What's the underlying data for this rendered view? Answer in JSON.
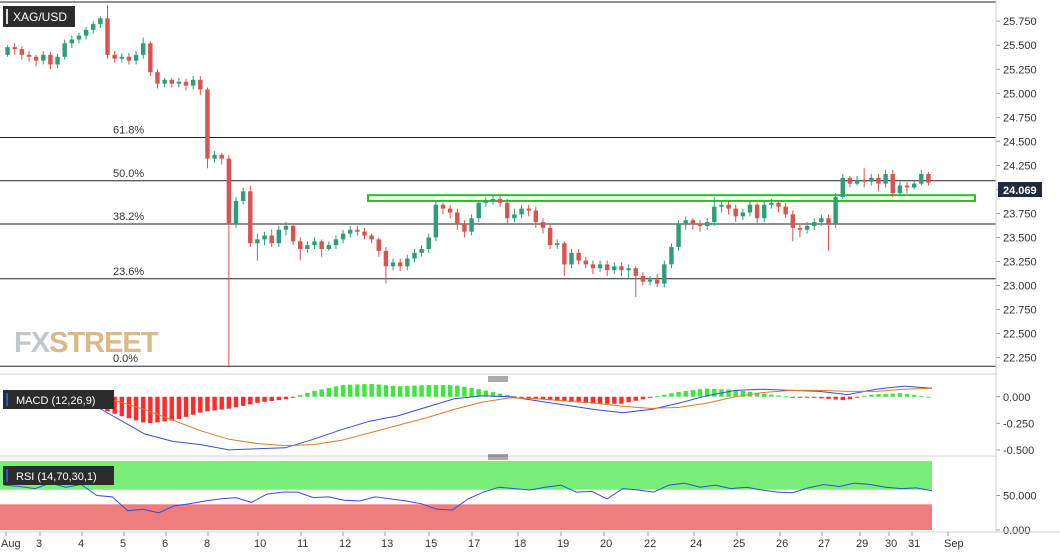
{
  "chart_data": [
    {
      "type": "candlestick",
      "title": "XAG/USD",
      "y_axis_ticks": [
        "25.750",
        "25.500",
        "25.250",
        "25.000",
        "24.750",
        "24.500",
        "24.250",
        "24.000",
        "23.750",
        "23.500",
        "23.250",
        "23.000",
        "22.750",
        "22.500",
        "22.250"
      ],
      "ylim": [
        22.1,
        25.95
      ],
      "x_axis_ticks": [
        "Aug",
        "3",
        "4",
        "5",
        "6",
        "8",
        "10",
        "11",
        "12",
        "13",
        "15",
        "17",
        "18",
        "19",
        "20",
        "22",
        "24",
        "25",
        "26",
        "27",
        "29",
        "30",
        "31",
        "Sep"
      ],
      "last_price": "24.069",
      "fibonacci_levels": [
        {
          "label": "61.8%",
          "value": 24.54
        },
        {
          "label": "50.0%",
          "value": 24.09
        },
        {
          "label": "38.2%",
          "value": 23.64
        },
        {
          "label": "23.6%",
          "value": 23.07
        },
        {
          "label": "0.0%",
          "value": 22.16
        }
      ],
      "resistance_zone": {
        "from": 23.88,
        "to": 23.94
      },
      "candles": [
        [
          25.4,
          25.48,
          25.38,
          25.5
        ],
        [
          25.48,
          25.46,
          25.4,
          25.52
        ],
        [
          25.46,
          25.4,
          25.35,
          25.49
        ],
        [
          25.4,
          25.38,
          25.33,
          25.44
        ],
        [
          25.38,
          25.34,
          25.28,
          25.4
        ],
        [
          25.34,
          25.4,
          25.3,
          25.44
        ],
        [
          25.4,
          25.3,
          25.25,
          25.43
        ],
        [
          25.3,
          25.38,
          25.26,
          25.41
        ],
        [
          25.38,
          25.52,
          25.35,
          25.56
        ],
        [
          25.52,
          25.56,
          25.47,
          25.6
        ],
        [
          25.56,
          25.6,
          25.52,
          25.63
        ],
        [
          25.6,
          25.66,
          25.56,
          25.69
        ],
        [
          25.66,
          25.72,
          25.62,
          25.75
        ],
        [
          25.72,
          25.78,
          25.68,
          25.8
        ],
        [
          25.78,
          25.4,
          25.36,
          25.92
        ],
        [
          25.4,
          25.36,
          25.32,
          25.44
        ],
        [
          25.36,
          25.38,
          25.32,
          25.42
        ],
        [
          25.38,
          25.34,
          25.3,
          25.42
        ],
        [
          25.34,
          25.4,
          25.3,
          25.44
        ],
        [
          25.4,
          25.52,
          25.36,
          25.58
        ],
        [
          25.52,
          25.22,
          25.18,
          25.54
        ],
        [
          25.22,
          25.1,
          25.05,
          25.25
        ],
        [
          25.1,
          25.14,
          25.06,
          25.16
        ],
        [
          25.14,
          25.1,
          25.06,
          25.16
        ],
        [
          25.1,
          25.12,
          25.06,
          25.16
        ],
        [
          25.12,
          25.08,
          25.03,
          25.15
        ],
        [
          25.08,
          25.14,
          25.04,
          25.18
        ],
        [
          25.14,
          25.04,
          24.98,
          25.18
        ],
        [
          25.04,
          24.32,
          24.22,
          25.06
        ],
        [
          24.32,
          24.36,
          24.28,
          24.4
        ],
        [
          24.36,
          24.32,
          24.26,
          24.38
        ],
        [
          24.32,
          23.64,
          22.16,
          24.36
        ],
        [
          23.64,
          23.88,
          23.6,
          23.92
        ],
        [
          23.88,
          23.98,
          23.84,
          24.02
        ],
        [
          23.98,
          23.44,
          23.4,
          24.04
        ],
        [
          23.44,
          23.48,
          23.26,
          23.54
        ],
        [
          23.48,
          23.52,
          23.42,
          23.56
        ],
        [
          23.52,
          23.44,
          23.4,
          23.58
        ],
        [
          23.44,
          23.58,
          23.4,
          23.62
        ],
        [
          23.58,
          23.62,
          23.52,
          23.66
        ],
        [
          23.62,
          23.46,
          23.42,
          23.64
        ],
        [
          23.46,
          23.38,
          23.26,
          23.5
        ],
        [
          23.38,
          23.42,
          23.34,
          23.46
        ],
        [
          23.42,
          23.46,
          23.38,
          23.5
        ],
        [
          23.46,
          23.38,
          23.3,
          23.48
        ],
        [
          23.38,
          23.42,
          23.36,
          23.46
        ],
        [
          23.42,
          23.48,
          23.38,
          23.52
        ],
        [
          23.48,
          23.54,
          23.44,
          23.58
        ],
        [
          23.54,
          23.58,
          23.5,
          23.62
        ],
        [
          23.58,
          23.56,
          23.52,
          23.62
        ],
        [
          23.56,
          23.52,
          23.48,
          23.6
        ],
        [
          23.52,
          23.48,
          23.44,
          23.54
        ],
        [
          23.48,
          23.36,
          23.3,
          23.5
        ],
        [
          23.36,
          23.2,
          23.02,
          23.4
        ],
        [
          23.2,
          23.24,
          23.16,
          23.28
        ],
        [
          23.24,
          23.2,
          23.15,
          23.28
        ],
        [
          23.2,
          23.28,
          23.16,
          23.32
        ],
        [
          23.28,
          23.34,
          23.24,
          23.38
        ],
        [
          23.34,
          23.38,
          23.3,
          23.42
        ],
        [
          23.38,
          23.5,
          23.34,
          23.54
        ],
        [
          23.5,
          23.84,
          23.46,
          23.88
        ],
        [
          23.84,
          23.8,
          23.74,
          23.86
        ],
        [
          23.8,
          23.76,
          23.7,
          23.84
        ],
        [
          23.76,
          23.64,
          23.58,
          23.8
        ],
        [
          23.64,
          23.56,
          23.5,
          23.68
        ],
        [
          23.56,
          23.7,
          23.52,
          23.74
        ],
        [
          23.7,
          23.86,
          23.66,
          23.88
        ],
        [
          23.86,
          23.88,
          23.82,
          23.92
        ],
        [
          23.88,
          23.9,
          23.84,
          23.94
        ],
        [
          23.9,
          23.86,
          23.82,
          23.94
        ],
        [
          23.86,
          23.7,
          23.64,
          23.9
        ],
        [
          23.7,
          23.74,
          23.66,
          23.8
        ],
        [
          23.74,
          23.8,
          23.7,
          23.84
        ],
        [
          23.8,
          23.78,
          23.72,
          23.84
        ],
        [
          23.78,
          23.66,
          23.6,
          23.82
        ],
        [
          23.66,
          23.6,
          23.54,
          23.7
        ],
        [
          23.6,
          23.42,
          23.38,
          23.64
        ],
        [
          23.42,
          23.44,
          23.38,
          23.48
        ],
        [
          23.44,
          23.22,
          23.1,
          23.46
        ],
        [
          23.22,
          23.34,
          23.18,
          23.38
        ],
        [
          23.34,
          23.26,
          23.22,
          23.38
        ],
        [
          23.26,
          23.22,
          23.18,
          23.3
        ],
        [
          23.22,
          23.18,
          23.12,
          23.26
        ],
        [
          23.18,
          23.22,
          23.14,
          23.26
        ],
        [
          23.22,
          23.16,
          23.1,
          23.26
        ],
        [
          23.16,
          23.2,
          23.12,
          23.24
        ],
        [
          23.2,
          23.16,
          23.1,
          23.24
        ],
        [
          23.16,
          23.18,
          23.08,
          23.22
        ],
        [
          23.18,
          23.1,
          22.88,
          23.2
        ],
        [
          23.1,
          23.04,
          23.0,
          23.14
        ],
        [
          23.04,
          23.06,
          23.0,
          23.1
        ],
        [
          23.06,
          23.02,
          22.98,
          23.12
        ],
        [
          23.02,
          23.22,
          22.98,
          23.26
        ],
        [
          23.22,
          23.4,
          23.18,
          23.44
        ],
        [
          23.4,
          23.64,
          23.36,
          23.68
        ],
        [
          23.64,
          23.68,
          23.58,
          23.72
        ],
        [
          23.68,
          23.64,
          23.58,
          23.7
        ],
        [
          23.64,
          23.62,
          23.56,
          23.68
        ],
        [
          23.62,
          23.66,
          23.58,
          23.7
        ],
        [
          23.66,
          23.82,
          23.62,
          23.92
        ],
        [
          23.82,
          23.84,
          23.76,
          23.88
        ],
        [
          23.84,
          23.8,
          23.74,
          23.88
        ],
        [
          23.8,
          23.72,
          23.66,
          23.84
        ],
        [
          23.72,
          23.76,
          23.68,
          23.8
        ],
        [
          23.76,
          23.84,
          23.72,
          23.88
        ],
        [
          23.84,
          23.7,
          23.64,
          23.86
        ],
        [
          23.7,
          23.84,
          23.66,
          23.88
        ],
        [
          23.84,
          23.86,
          23.8,
          23.9
        ],
        [
          23.86,
          23.82,
          23.76,
          23.88
        ],
        [
          23.82,
          23.74,
          23.7,
          23.86
        ],
        [
          23.74,
          23.6,
          23.46,
          23.78
        ],
        [
          23.6,
          23.58,
          23.5,
          23.64
        ],
        [
          23.58,
          23.62,
          23.54,
          23.66
        ],
        [
          23.62,
          23.66,
          23.58,
          23.7
        ],
        [
          23.66,
          23.7,
          23.62,
          23.74
        ],
        [
          23.7,
          23.64,
          23.36,
          23.74
        ],
        [
          23.64,
          23.92,
          23.6,
          23.96
        ],
        [
          23.92,
          24.12,
          23.9,
          24.16
        ],
        [
          24.12,
          24.06,
          24.02,
          24.14
        ],
        [
          24.06,
          24.1,
          24.04,
          24.14
        ],
        [
          24.1,
          24.08,
          24.02,
          24.22
        ],
        [
          24.08,
          24.12,
          24.04,
          24.16
        ],
        [
          24.12,
          24.06,
          23.98,
          24.16
        ],
        [
          24.06,
          24.16,
          24.02,
          24.2
        ],
        [
          24.16,
          23.96,
          23.92,
          24.2
        ],
        [
          23.96,
          24.04,
          23.94,
          24.08
        ],
        [
          24.04,
          24.02,
          23.96,
          24.08
        ],
        [
          24.02,
          24.06,
          24.0,
          24.1
        ],
        [
          24.06,
          24.16,
          24.04,
          24.2
        ],
        [
          24.16,
          24.07,
          24.04,
          24.18
        ]
      ]
    },
    {
      "type": "macd",
      "label": "MACD (12,26,9)",
      "y_axis_ticks": [
        "0.000",
        "-0.250",
        "-0.500"
      ],
      "ylim": [
        -0.52,
        0.12
      ],
      "macd": [
        0.06,
        0.04,
        0.02,
        -0.05,
        -0.2,
        -0.35,
        -0.42,
        -0.45,
        -0.5,
        -0.49,
        -0.48,
        -0.4,
        -0.31,
        -0.23,
        -0.18,
        -0.1,
        -0.02,
        0.01,
        0.0,
        -0.04,
        -0.08,
        -0.12,
        -0.15,
        -0.12,
        -0.06,
        0.01,
        0.06,
        0.07,
        0.06,
        0.05,
        0.02,
        0.07,
        0.1,
        0.08
      ],
      "signal": [
        0.04,
        0.04,
        0.03,
        0.02,
        -0.04,
        -0.12,
        -0.22,
        -0.32,
        -0.4,
        -0.44,
        -0.46,
        -0.45,
        -0.41,
        -0.34,
        -0.27,
        -0.2,
        -0.12,
        -0.05,
        -0.01,
        -0.02,
        -0.04,
        -0.06,
        -0.09,
        -0.11,
        -0.1,
        -0.06,
        0.0,
        0.04,
        0.06,
        0.06,
        0.05,
        0.05,
        0.07,
        0.08
      ]
    },
    {
      "type": "rsi",
      "label": "RSI (14,70,30,1)",
      "y_axis_ticks": [
        "50.000",
        "0.000"
      ],
      "ylim": [
        0,
        100
      ],
      "overbought": 70,
      "oversold": 30,
      "values": [
        65,
        63,
        60,
        68,
        62,
        66,
        50,
        48,
        28,
        30,
        25,
        35,
        38,
        42,
        45,
        47,
        40,
        52,
        55,
        55,
        47,
        48,
        43,
        42,
        48,
        45,
        42,
        38,
        30,
        29,
        45,
        55,
        62,
        60,
        58,
        62,
        65,
        55,
        56,
        45,
        60,
        58,
        55,
        65,
        68,
        62,
        65,
        60,
        62,
        58,
        55,
        54,
        61,
        66,
        63,
        68,
        66,
        62,
        60,
        61,
        57
      ]
    }
  ]
}
